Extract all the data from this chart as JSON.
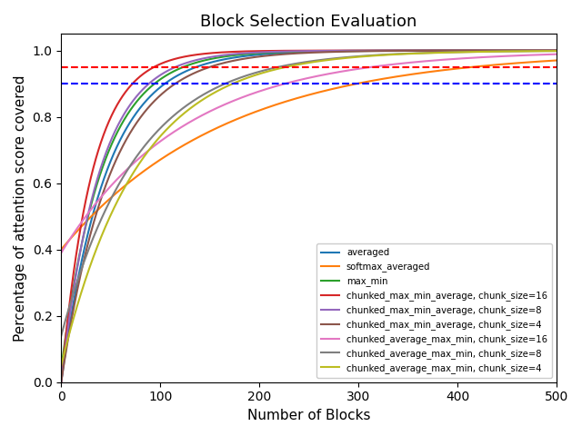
{
  "title": "Block Selection Evaluation",
  "xlabel": "Number of Blocks",
  "ylabel": "Percentage of attention score covered",
  "xlim": [
    0,
    500
  ],
  "ylim": [
    0.0,
    1.05
  ],
  "hline_red": 0.95,
  "hline_blue": 0.9,
  "curves": [
    {
      "label": "averaged",
      "color": "#1f77b4",
      "y0": 0.0,
      "rate": 0.022
    },
    {
      "label": "softmax_averaged",
      "color": "#ff7f0e",
      "y0": 0.4,
      "rate": 0.006
    },
    {
      "label": "max_min",
      "color": "#2ca02c",
      "y0": 0.04,
      "rate": 0.024
    },
    {
      "label": "chunked_max_min_average, chunk_size=16",
      "color": "#d62728",
      "y0": 0.0,
      "rate": 0.032
    },
    {
      "label": "chunked_max_min_average, chunk_size=8",
      "color": "#9467bd",
      "y0": 0.0,
      "rate": 0.026
    },
    {
      "label": "chunked_max_min_average, chunk_size=4",
      "color": "#8c564b",
      "y0": 0.0,
      "rate": 0.02
    },
    {
      "label": "chunked_average_max_min, chunk_size=16",
      "color": "#e377c2",
      "y0": 0.39,
      "rate": 0.008
    },
    {
      "label": "chunked_average_max_min, chunk_size=8",
      "color": "#7f7f7f",
      "y0": 0.14,
      "rate": 0.013
    },
    {
      "label": "chunked_average_max_min, chunk_size=4",
      "color": "#bcbd22",
      "y0": 0.05,
      "rate": 0.013
    }
  ]
}
